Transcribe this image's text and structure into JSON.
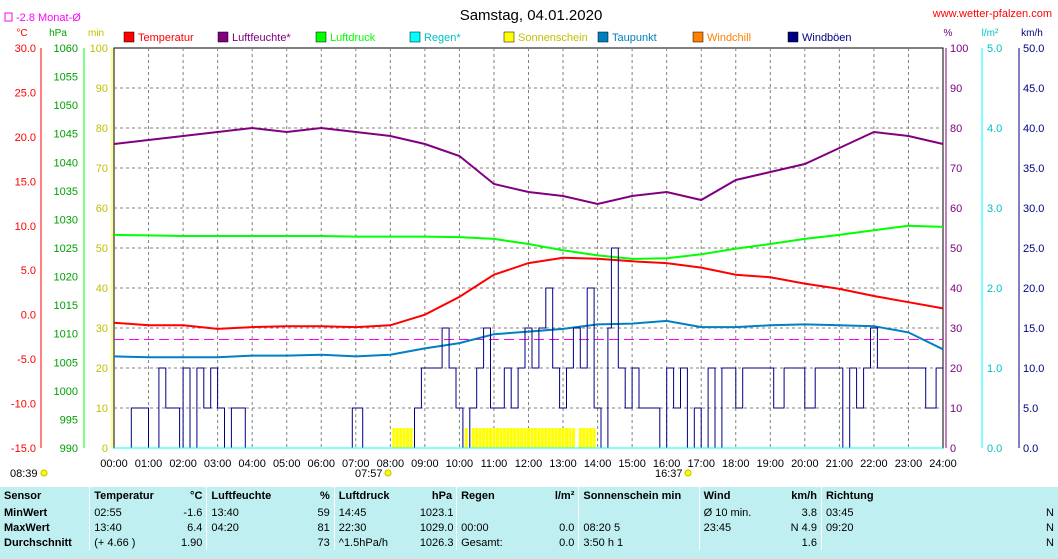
{
  "header": {
    "title": "Samstag, 04.01.2020",
    "website": "www.wetter-pfalzen.com",
    "month_avg_label": "-2.8 Monat-Ø",
    "sunrise": "07:57",
    "sunset": "16:37",
    "daylength": "08:39"
  },
  "axes": {
    "left_units": [
      "°C",
      "hPa",
      "min"
    ],
    "right_units": [
      "%",
      "l/m²",
      "km/h"
    ],
    "temp_ticks": [
      "30.0",
      "25.0",
      "20.0",
      "15.0",
      "10.0",
      "5.0",
      "0.0",
      "-5.0",
      "-10.0",
      "-15.0"
    ],
    "press_ticks": [
      "1060",
      "1055",
      "1050",
      "1045",
      "1040",
      "1035",
      "1030",
      "1025",
      "1020",
      "1015",
      "1010",
      "1005",
      "1000",
      "995",
      "990"
    ],
    "min_ticks": [
      "100",
      "90",
      "80",
      "70",
      "60",
      "50",
      "40",
      "30",
      "20",
      "10",
      "0"
    ],
    "pct_ticks": [
      "100",
      "90",
      "80",
      "70",
      "60",
      "50",
      "40",
      "30",
      "20",
      "10",
      "0"
    ],
    "rain_ticks": [
      "5.0",
      "4.0",
      "3.0",
      "2.0",
      "1.0",
      "0.0"
    ],
    "wind_ticks": [
      "50.0",
      "45.0",
      "40.0",
      "35.0",
      "30.0",
      "25.0",
      "20.0",
      "15.0",
      "10.0",
      "5.0",
      "0.0"
    ],
    "time_ticks": [
      "00:00",
      "01:00",
      "02:00",
      "03:00",
      "04:00",
      "05:00",
      "06:00",
      "07:00",
      "08:00",
      "09:00",
      "10:00",
      "11:00",
      "12:00",
      "13:00",
      "14:00",
      "15:00",
      "16:00",
      "17:00",
      "18:00",
      "19:00",
      "20:00",
      "21:00",
      "22:00",
      "23:00",
      "24:00"
    ]
  },
  "legend": [
    {
      "label": "Temperatur",
      "color": "#ff0000"
    },
    {
      "label": "Luftfeuchte*",
      "color": "#800080"
    },
    {
      "label": "Luftdruck",
      "color": "#00ff00"
    },
    {
      "label": "Regen*",
      "color": "#00ffff"
    },
    {
      "label": "Sonnenschein",
      "color": "#ffff00"
    },
    {
      "label": "Taupunkt",
      "color": "#0080c0"
    },
    {
      "label": "Windchill",
      "color": "#ff8000"
    },
    {
      "label": "Windböen",
      "color": "#000080"
    }
  ],
  "chart_data": {
    "type": "line",
    "x_unit": "hour of day",
    "xlim": [
      0,
      24
    ],
    "month_average_temperature": -2.8,
    "series": [
      {
        "name": "Temperatur",
        "unit": "°C",
        "color": "#ff0000",
        "ylim": [
          -15,
          30
        ],
        "x": [
          0,
          1,
          2,
          3,
          4,
          5,
          6,
          7,
          8,
          9,
          10,
          11,
          12,
          13,
          14,
          15,
          16,
          17,
          18,
          19,
          20,
          21,
          22,
          23,
          24
        ],
        "y": [
          -0.9,
          -1.2,
          -1.2,
          -1.6,
          -1.4,
          -1.3,
          -1.3,
          -1.4,
          -1.2,
          0.0,
          2.0,
          4.5,
          5.8,
          6.4,
          6.3,
          6.0,
          5.8,
          5.3,
          4.5,
          4.2,
          3.5,
          2.9,
          2.1,
          1.4,
          0.7
        ]
      },
      {
        "name": "Luftfeuchte*",
        "unit": "%",
        "color": "#800080",
        "ylim": [
          0,
          100
        ],
        "x": [
          0,
          1,
          2,
          3,
          4,
          5,
          6,
          7,
          8,
          9,
          10,
          11,
          12,
          13,
          14,
          15,
          16,
          17,
          18,
          19,
          20,
          21,
          22,
          23,
          24
        ],
        "y": [
          76,
          77,
          78,
          79,
          80,
          79,
          80,
          79,
          78,
          76,
          73,
          66,
          64,
          63,
          61,
          63,
          64,
          62,
          67,
          69,
          71,
          75,
          79,
          78,
          76
        ]
      },
      {
        "name": "Luftdruck",
        "unit": "hPa",
        "color": "#00ff00",
        "ylim": [
          990,
          1060
        ],
        "x": [
          0,
          1,
          2,
          3,
          4,
          5,
          6,
          7,
          8,
          9,
          10,
          11,
          12,
          13,
          14,
          15,
          16,
          17,
          18,
          19,
          20,
          21,
          22,
          23,
          24
        ],
        "y": [
          1027.3,
          1027.2,
          1027.1,
          1027.1,
          1027.1,
          1027.1,
          1027.1,
          1027.0,
          1027.0,
          1027.0,
          1026.9,
          1026.6,
          1025.7,
          1024.6,
          1023.7,
          1023.1,
          1023.2,
          1023.9,
          1024.9,
          1025.7,
          1026.6,
          1027.3,
          1028.1,
          1028.9,
          1028.7
        ]
      },
      {
        "name": "Taupunkt",
        "unit": "°C",
        "color": "#0080c0",
        "ylim": [
          -15,
          30
        ],
        "x": [
          0,
          1,
          2,
          3,
          4,
          5,
          6,
          7,
          8,
          9,
          10,
          11,
          12,
          13,
          14,
          15,
          16,
          17,
          18,
          19,
          20,
          21,
          22,
          23,
          24
        ],
        "y": [
          -4.7,
          -4.8,
          -4.8,
          -4.8,
          -4.6,
          -4.6,
          -4.5,
          -4.7,
          -4.5,
          -3.8,
          -3.2,
          -2.2,
          -1.9,
          -1.6,
          -1.1,
          -1.0,
          -0.7,
          -1.4,
          -1.4,
          -1.2,
          -1.1,
          -1.2,
          -1.3,
          -2.0,
          -3.9
        ]
      },
      {
        "name": "Windböen",
        "unit": "km/h",
        "color": "#000080",
        "ylim": [
          0,
          50
        ],
        "x": [
          0,
          0.4,
          0.5,
          0.9,
          1.0,
          1.3,
          1.5,
          1.9,
          2.0,
          2.2,
          2.4,
          2.6,
          2.8,
          3.0,
          3.2,
          3.4,
          3.6,
          3.8,
          4.0,
          4.1,
          5.5,
          5.6,
          6.5,
          6.7,
          6.9,
          7.1,
          7.2,
          7.4,
          7.9,
          8.1,
          8.3,
          8.5,
          8.7,
          8.9,
          9.1,
          9.3,
          9.5,
          9.7,
          9.9,
          10.1,
          10.3,
          10.5,
          10.7,
          10.9,
          11.1,
          11.3,
          11.5,
          11.7,
          11.9,
          12.1,
          12.3,
          12.5,
          12.7,
          12.9,
          13.1,
          13.3,
          13.5,
          13.7,
          13.9,
          14.1,
          14.3,
          14.4,
          14.6,
          14.8,
          15.0,
          15.2,
          15.5,
          15.8,
          16.0,
          16.2,
          16.4,
          16.6,
          16.8,
          17.0,
          17.2,
          17.4,
          17.6,
          17.8,
          18.0,
          18.2,
          18.5,
          18.8,
          19.1,
          19.4,
          19.7,
          20.0,
          20.3,
          20.6,
          20.9,
          21.1,
          21.3,
          21.5,
          21.7,
          21.9,
          22.1,
          22.3,
          22.6,
          22.9,
          23.2,
          23.5,
          23.8,
          24.0
        ],
        "y": [
          0,
          0,
          5,
          5,
          0,
          10,
          5,
          0,
          10,
          0,
          10,
          5,
          10,
          5,
          0,
          5,
          5,
          0,
          0,
          0,
          0,
          0,
          0,
          0,
          5,
          5,
          0,
          0,
          0,
          0,
          0,
          0,
          5,
          10,
          10,
          10,
          15,
          10,
          5,
          0,
          5,
          10,
          15,
          5,
          5,
          10,
          5,
          10,
          15,
          10,
          15,
          20,
          10,
          5,
          10,
          15,
          10,
          20,
          5,
          0,
          15,
          25,
          10,
          5,
          10,
          5,
          5,
          0,
          10,
          5,
          10,
          0,
          5,
          0,
          10,
          0,
          10,
          10,
          5,
          10,
          10,
          10,
          5,
          10,
          10,
          5,
          10,
          10,
          10,
          0,
          10,
          5,
          10,
          15,
          10,
          10,
          10,
          10,
          10,
          5,
          10,
          10
        ]
      },
      {
        "name": "Sonnenschein",
        "unit": "min",
        "color": "#ffff00",
        "ylim": [
          0,
          100
        ],
        "x": [
          8.1,
          8.2,
          8.3,
          8.4,
          8.5,
          8.6,
          10.2,
          10.4,
          10.5,
          10.6,
          10.7,
          10.8,
          10.9,
          11.0,
          11.1,
          11.2,
          11.3,
          11.4,
          11.5,
          11.6,
          11.7,
          11.8,
          11.9,
          12.0,
          12.1,
          12.2,
          12.3,
          12.4,
          12.5,
          12.6,
          12.7,
          12.8,
          12.9,
          13.0,
          13.1,
          13.2,
          13.3,
          13.5,
          13.6,
          13.7,
          13.8,
          13.9
        ],
        "y": [
          5,
          5,
          5,
          5,
          5,
          5,
          5,
          5,
          5,
          5,
          5,
          5,
          5,
          5,
          5,
          5,
          5,
          5,
          5,
          5,
          5,
          5,
          5,
          5,
          5,
          5,
          5,
          5,
          5,
          5,
          5,
          5,
          5,
          5,
          5,
          5,
          5,
          5,
          5,
          5,
          5,
          5
        ]
      },
      {
        "name": "Regen*",
        "unit": "l/m²",
        "color": "#00ffff",
        "ylim": [
          0,
          5
        ],
        "x": [
          0,
          24
        ],
        "y": [
          0,
          0
        ]
      }
    ]
  },
  "summary": {
    "headers": [
      "Sensor",
      "Temperatur",
      "°C",
      "Luftfeuchte",
      "%",
      "Luftdruck",
      "hPa",
      "Regen",
      "l/m²",
      "Sonnenschein min",
      "Wind",
      "km/h",
      "Richtung",
      ""
    ],
    "rows": [
      [
        "MinWert",
        "02:55",
        "-1.6",
        "13:40",
        "59",
        "14:45",
        "1023.1",
        "",
        "",
        "",
        "Ø 10 min.",
        "3.8",
        "03:45",
        "N"
      ],
      [
        "MaxWert",
        "13:40",
        "6.4",
        "04:20",
        "81",
        "22:30",
        "1029.0",
        "00:00",
        "0.0",
        "08:20   5",
        "23:45",
        "N 4.9",
        "09:20",
        "N"
      ],
      [
        "Durchschnitt",
        "(+ 4.66 )",
        "1.90",
        "",
        "73",
        "^1.5hPa/h",
        "1026.3",
        "Gesamt:",
        "0.0",
        "3:50 h   1",
        "",
        "1.6",
        "",
        "N"
      ]
    ]
  }
}
